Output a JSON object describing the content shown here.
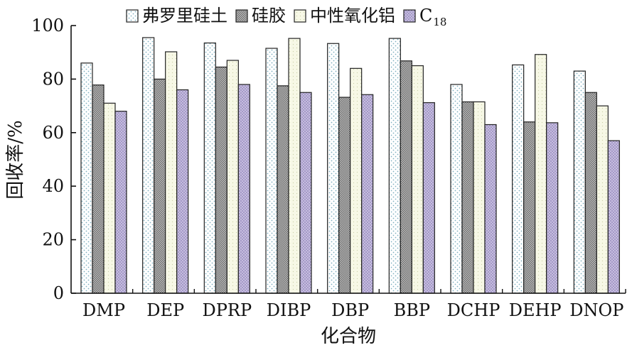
{
  "chart_data": {
    "type": "bar",
    "xlabel": "化合物",
    "ylabel": "回收率/%",
    "ylim": [
      0,
      100
    ],
    "yticks": [
      0,
      20,
      40,
      60,
      80,
      100
    ],
    "grid": false,
    "legend_position": "top",
    "categories": [
      "DMP",
      "DEP",
      "DPRP",
      "DIBP",
      "DBP",
      "BBP",
      "DCHP",
      "DEHP",
      "DNOP"
    ],
    "series": [
      {
        "name": "弗罗里硅土",
        "pattern": "dots-light",
        "color": "#ffffff",
        "values": [
          86,
          95.5,
          93.5,
          91.5,
          93.3,
          95.2,
          78,
          85.3,
          83
        ]
      },
      {
        "name": "硅胶",
        "pattern": "dense-gray",
        "color": "#9a9a9a",
        "values": [
          77.8,
          80,
          84.5,
          77.5,
          73.2,
          86.8,
          71.5,
          64,
          75
        ]
      },
      {
        "name": "中性氧化铝",
        "pattern": "light-yellow",
        "color": "#f4f6e0",
        "values": [
          71,
          90.2,
          87,
          95.2,
          84,
          85,
          71.5,
          89.2,
          70
        ]
      },
      {
        "name": "C",
        "name_sub": "18",
        "pattern": "purple-dots",
        "color": "#b3a9d2",
        "values": [
          68,
          76,
          78,
          75,
          74.2,
          71.2,
          63,
          63.7,
          57
        ]
      }
    ]
  }
}
